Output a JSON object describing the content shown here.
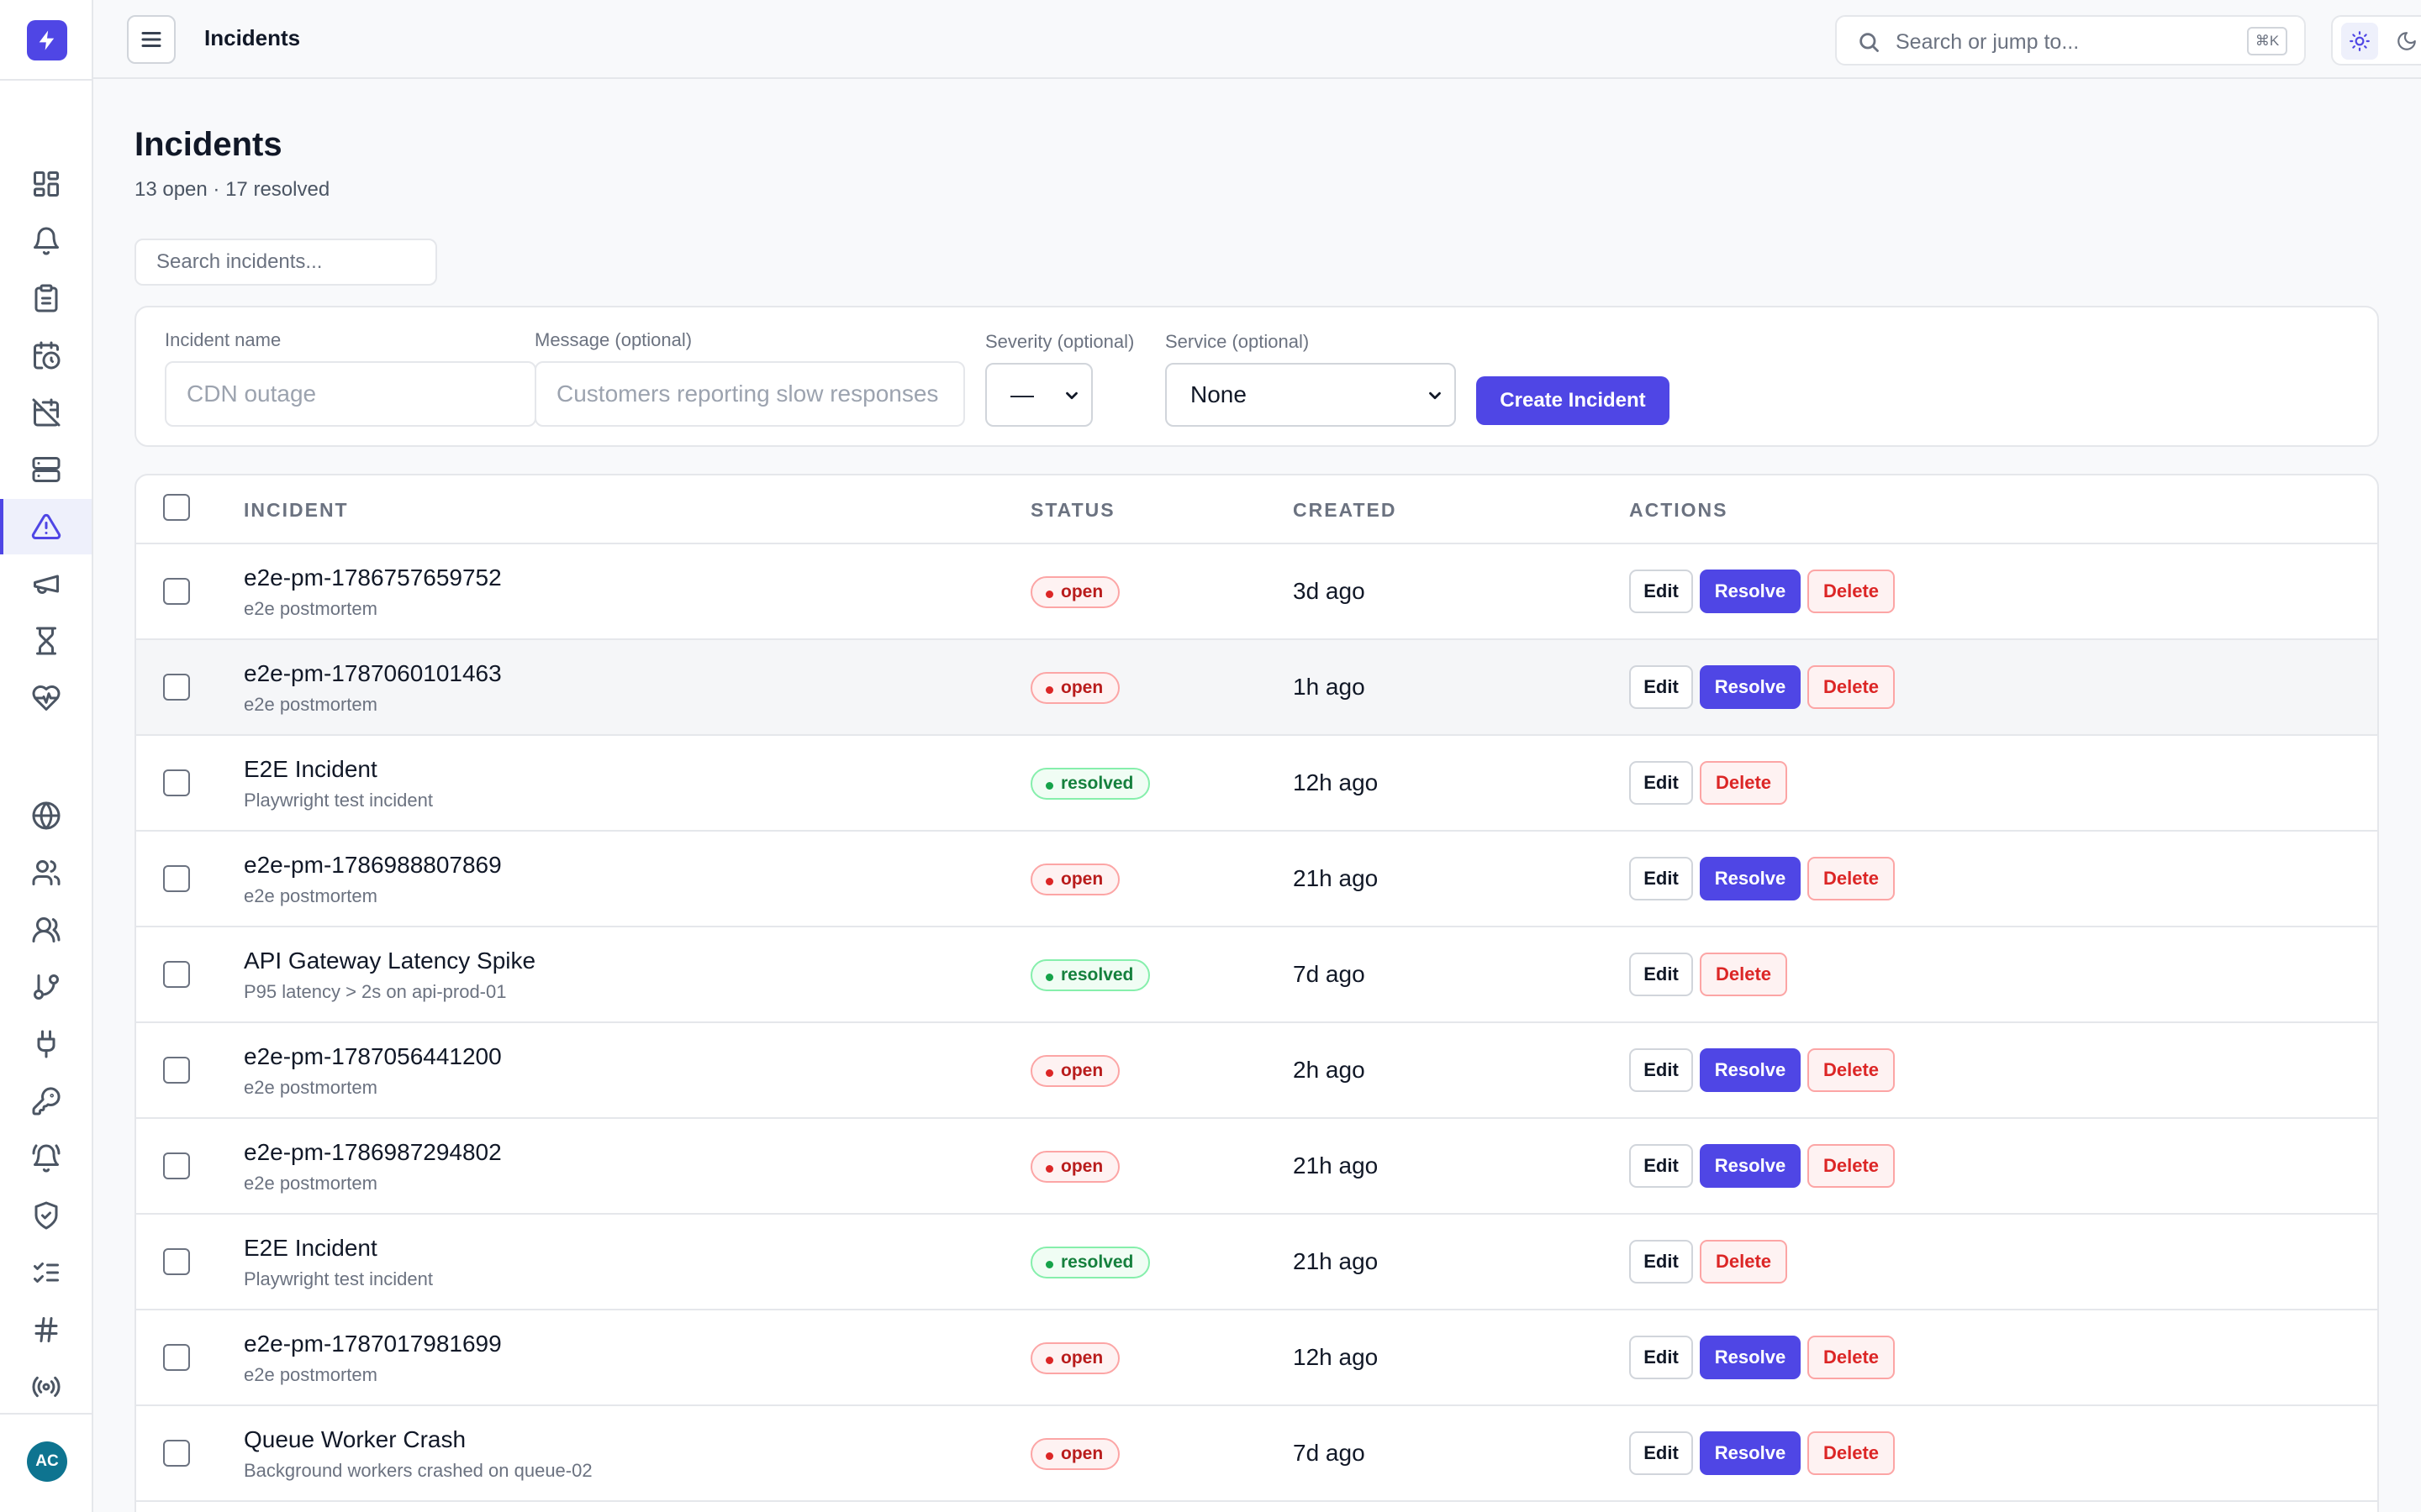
{
  "app": {
    "avatar_initials": "AC",
    "accent_color": "#4f46e5"
  },
  "topbar": {
    "title": "Incidents",
    "search_placeholder": "Search or jump to...",
    "search_shortcut": "⌘K"
  },
  "page": {
    "title": "Incidents",
    "summary": "13 open · 17 resolved",
    "filter_placeholder": "Search incidents..."
  },
  "form": {
    "name_label": "Incident name",
    "name_placeholder": "CDN outage",
    "message_label": "Message (optional)",
    "message_placeholder": "Customers reporting slow responses",
    "severity_label": "Severity (optional)",
    "severity_value": "—",
    "service_label": "Service (optional)",
    "service_value": "None",
    "create_label": "Create Incident"
  },
  "table": {
    "columns": {
      "incident": "INCIDENT",
      "status": "STATUS",
      "created": "CREATED",
      "actions": "ACTIONS"
    },
    "action_labels": {
      "edit": "Edit",
      "resolve": "Resolve",
      "delete": "Delete"
    },
    "rows": [
      {
        "name": "e2e-pm-1786757659752",
        "message": "e2e postmortem",
        "status": "open",
        "created": "3d ago"
      },
      {
        "name": "e2e-pm-1787060101463",
        "message": "e2e postmortem",
        "status": "open",
        "created": "1h ago"
      },
      {
        "name": "E2E Incident",
        "message": "Playwright test incident",
        "status": "resolved",
        "created": "12h ago"
      },
      {
        "name": "e2e-pm-1786988807869",
        "message": "e2e postmortem",
        "status": "open",
        "created": "21h ago"
      },
      {
        "name": "API Gateway Latency Spike",
        "message": "P95 latency > 2s on api-prod-01",
        "status": "resolved",
        "created": "7d ago"
      },
      {
        "name": "e2e-pm-1787056441200",
        "message": "e2e postmortem",
        "status": "open",
        "created": "2h ago"
      },
      {
        "name": "e2e-pm-1786987294802",
        "message": "e2e postmortem",
        "status": "open",
        "created": "21h ago"
      },
      {
        "name": "E2E Incident",
        "message": "Playwright test incident",
        "status": "resolved",
        "created": "21h ago"
      },
      {
        "name": "e2e-pm-1787017981699",
        "message": "e2e postmortem",
        "status": "open",
        "created": "12h ago"
      },
      {
        "name": "Queue Worker Crash",
        "message": "Background workers crashed on queue-02",
        "status": "open",
        "created": "7d ago"
      }
    ]
  }
}
